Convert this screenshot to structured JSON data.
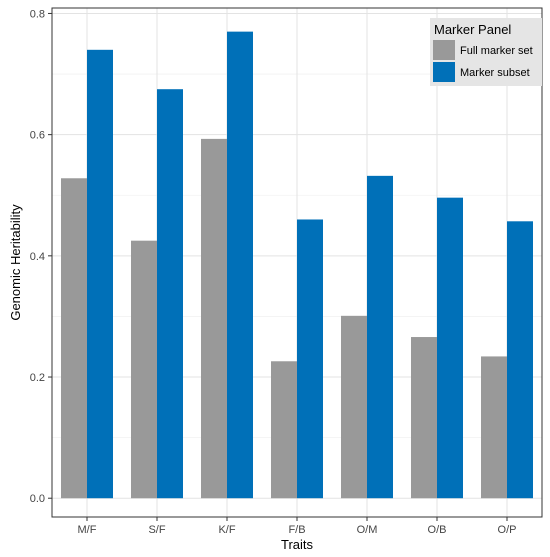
{
  "chart_data": {
    "type": "bar",
    "xlabel": "Traits",
    "ylabel": "Genomic Heritability",
    "categories": [
      "M/F",
      "S/F",
      "K/F",
      "F/B",
      "O/M",
      "O/B",
      "O/P"
    ],
    "series": [
      {
        "name": "Full marker set",
        "color": "#999999",
        "values": [
          0.528,
          0.425,
          0.593,
          0.226,
          0.301,
          0.266,
          0.234
        ]
      },
      {
        "name": "Marker subset",
        "color": "#0070b8",
        "values": [
          0.74,
          0.675,
          0.77,
          0.46,
          0.532,
          0.496,
          0.457
        ]
      }
    ],
    "ylim": [
      0.0,
      0.8
    ],
    "yticks": [
      0.0,
      0.2,
      0.4,
      0.6,
      0.8
    ],
    "ytick_labels": [
      "0.0",
      "0.2",
      "0.4",
      "0.6",
      "0.8"
    ],
    "grid": true,
    "legend": {
      "title": "Marker Panel",
      "position": "top-right"
    }
  }
}
